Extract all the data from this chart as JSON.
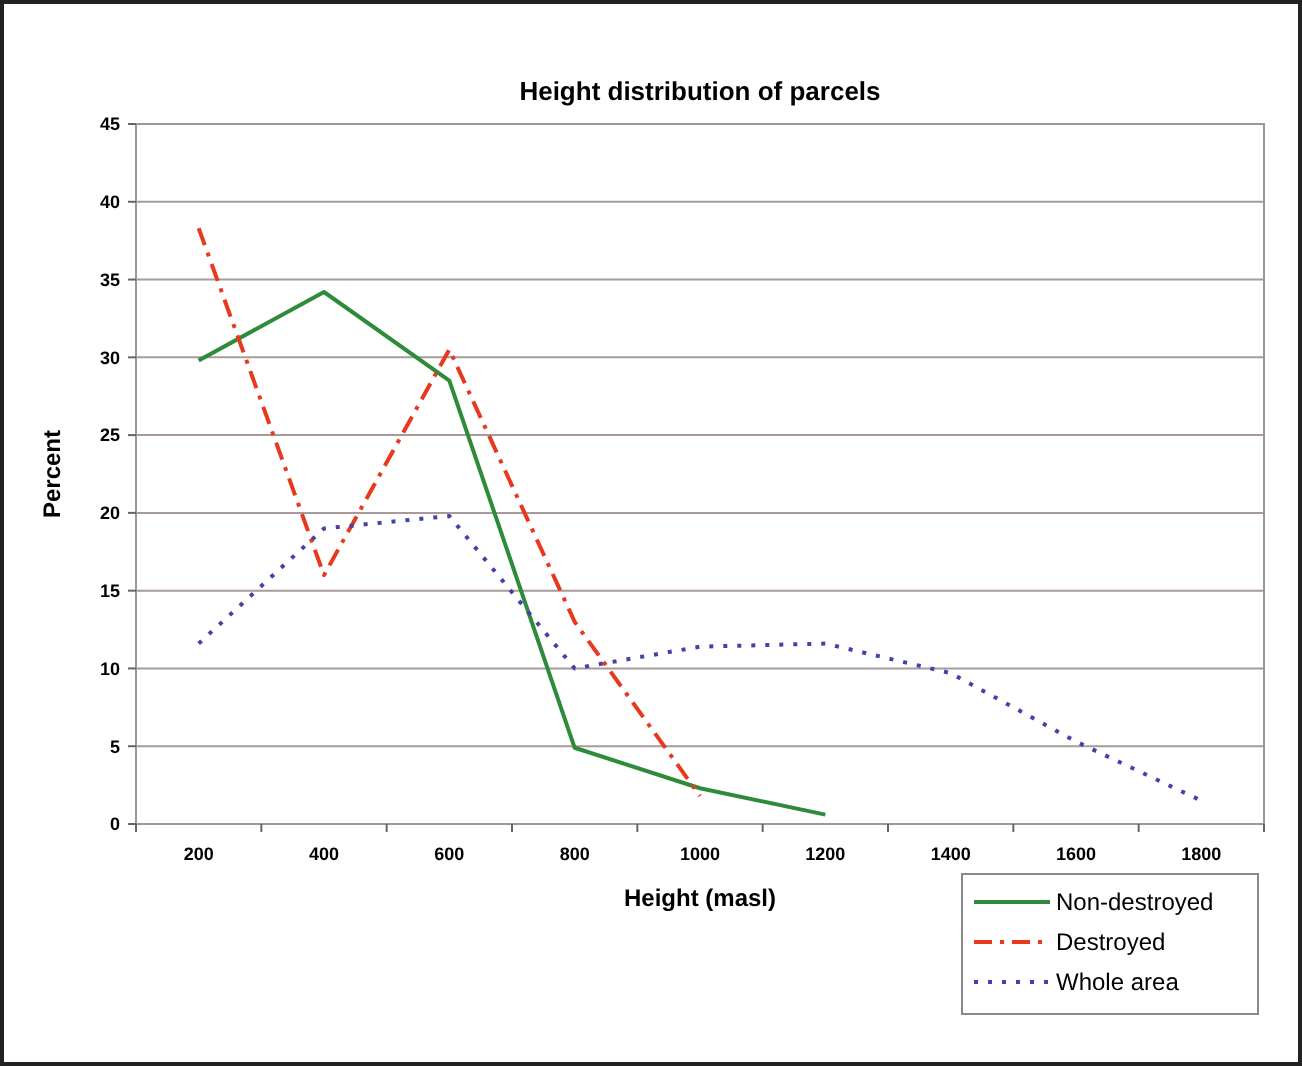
{
  "chart_data": {
    "type": "line",
    "title": "Height distribution of parcels",
    "xlabel": "Height (masl)",
    "ylabel": "Percent",
    "categories": [
      "200",
      "400",
      "600",
      "800",
      "1000",
      "1200",
      "1400",
      "1600",
      "1800"
    ],
    "series": [
      {
        "name": "Non-destroyed",
        "color": "#2e8b3a",
        "line_style": "solid",
        "values": [
          29.8,
          34.2,
          28.5,
          4.9,
          2.3,
          0.6,
          null,
          null,
          null
        ]
      },
      {
        "name": "Destroyed",
        "color": "#e8381e",
        "line_style": "dashdot",
        "values": [
          38.3,
          16,
          30.5,
          13,
          1.8,
          null,
          null,
          null,
          null
        ]
      },
      {
        "name": "Whole area",
        "color": "#4a3fa8",
        "line_style": "dotted",
        "values": [
          11.6,
          19,
          19.8,
          10,
          11.4,
          11.6,
          9.7,
          5.3,
          1.5
        ]
      }
    ],
    "ylim": [
      0,
      45
    ],
    "yticks": [
      0,
      5,
      10,
      15,
      20,
      25,
      30,
      35,
      40,
      45
    ],
    "grid": "y",
    "legend": "bottom right"
  }
}
